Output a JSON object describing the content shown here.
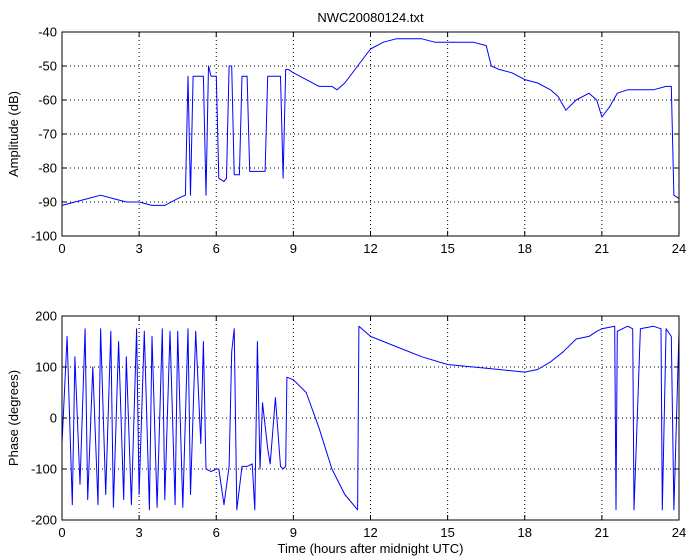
{
  "figure_title": "NWC20080124.txt",
  "shared_xlabel": "Time (hours after midnight UTC)",
  "colors": {
    "line": "#0000ff",
    "axes": "#000000",
    "grid": "#000000",
    "background": "#ffffff"
  },
  "chart_data": [
    {
      "type": "line",
      "title": "NWC20080124.txt",
      "xlabel": "",
      "ylabel": "Amplitude (dB)",
      "xlim": [
        0,
        24
      ],
      "ylim": [
        -100,
        -40
      ],
      "xticks": [
        "0",
        "3",
        "6",
        "9",
        "12",
        "15",
        "18",
        "21",
        "24"
      ],
      "yticks": [
        "-100",
        "-90",
        "-80",
        "-70",
        "-60",
        "-50",
        "-40"
      ],
      "grid": true,
      "series": [
        {
          "x": [
            0,
            0.5,
            1,
            1.5,
            2,
            2.5,
            3,
            3.5,
            4,
            4.5,
            4.8,
            4.9,
            5.0,
            5.1,
            5.3,
            5.5,
            5.6,
            5.7,
            5.8,
            6.0,
            6.1,
            6.3,
            6.4,
            6.5,
            6.6,
            6.7,
            6.9,
            7.0,
            7.2,
            7.3,
            7.6,
            7.9,
            8.0,
            8.2,
            8.3,
            8.5,
            8.6,
            8.7,
            8.8,
            9.0,
            9.5,
            10.0,
            10.5,
            10.7,
            11.0,
            11.5,
            12.0,
            12.5,
            13.0,
            13.5,
            14.0,
            14.5,
            15.0,
            15.5,
            16.0,
            16.5,
            16.7,
            17.0,
            17.5,
            18.0,
            18.5,
            19.0,
            19.3,
            19.6,
            20.0,
            20.5,
            20.8,
            21.0,
            21.3,
            21.6,
            22.0,
            22.5,
            23.0,
            23.5,
            23.7,
            23.8,
            24.0
          ],
          "values": [
            -91,
            -90,
            -89,
            -88,
            -89,
            -90,
            -90,
            -91,
            -91,
            -89,
            -88,
            -53,
            -88,
            -53,
            -53,
            -53,
            -88,
            -50,
            -53,
            -53,
            -83,
            -84,
            -83,
            -50,
            -50,
            -82,
            -82,
            -53,
            -53,
            -81,
            -81,
            -81,
            -53,
            -53,
            -53,
            -53,
            -83,
            -51,
            -51,
            -52,
            -54,
            -56,
            -56,
            -57,
            -55,
            -50,
            -45,
            -43,
            -42,
            -42,
            -42,
            -43,
            -43,
            -43,
            -43,
            -44,
            -50,
            -51,
            -52,
            -54,
            -55,
            -57,
            -59,
            -63,
            -60,
            -58,
            -60,
            -65,
            -62,
            -58,
            -57,
            -57,
            -57,
            -56,
            -56,
            -88,
            -89
          ]
        }
      ]
    },
    {
      "type": "line",
      "title": "",
      "xlabel": "Time (hours after midnight UTC)",
      "ylabel": "Phase (degrees)",
      "xlim": [
        0,
        24
      ],
      "ylim": [
        -200,
        200
      ],
      "xticks": [
        "0",
        "3",
        "6",
        "9",
        "12",
        "15",
        "18",
        "21",
        "24"
      ],
      "yticks": [
        "-200",
        "-100",
        "0",
        "100",
        "200"
      ],
      "grid": true,
      "series": [
        {
          "x": [
            0,
            0.2,
            0.4,
            0.5,
            0.7,
            0.9,
            1.0,
            1.2,
            1.4,
            1.5,
            1.7,
            1.9,
            2.0,
            2.2,
            2.4,
            2.5,
            2.7,
            2.9,
            3.0,
            3.2,
            3.4,
            3.5,
            3.7,
            3.9,
            4.0,
            4.2,
            4.4,
            4.5,
            4.7,
            4.9,
            5.0,
            5.2,
            5.4,
            5.5,
            5.6,
            5.8,
            6.0,
            6.1,
            6.3,
            6.5,
            6.6,
            6.7,
            6.8,
            7.0,
            7.2,
            7.4,
            7.5,
            7.6,
            7.7,
            7.8,
            8.0,
            8.1,
            8.3,
            8.5,
            8.6,
            8.7,
            8.75,
            9.0,
            9.5,
            10.0,
            10.5,
            11.0,
            11.5,
            11.55,
            12.0,
            13.0,
            14.0,
            15.0,
            16.0,
            17.0,
            18.0,
            18.5,
            19.0,
            19.5,
            20.0,
            20.5,
            20.8,
            21.0,
            21.5,
            21.55,
            21.6,
            22.0,
            22.2,
            22.25,
            22.5,
            23.0,
            23.3,
            23.35,
            23.5,
            23.7,
            23.8,
            24.0
          ],
          "values": [
            -50,
            160,
            -170,
            120,
            -130,
            175,
            -160,
            100,
            -170,
            175,
            -150,
            170,
            -175,
            150,
            -160,
            120,
            -170,
            175,
            -150,
            170,
            -180,
            160,
            -175,
            175,
            -160,
            170,
            -170,
            170,
            -175,
            175,
            -150,
            170,
            -50,
            150,
            -100,
            -105,
            -100,
            -100,
            -170,
            -95,
            130,
            175,
            -180,
            -95,
            -95,
            -90,
            -180,
            150,
            -100,
            30,
            -60,
            -90,
            40,
            -95,
            -100,
            -95,
            80,
            75,
            50,
            -20,
            -100,
            -150,
            -180,
            180,
            160,
            140,
            120,
            105,
            100,
            95,
            90,
            95,
            110,
            130,
            155,
            160,
            170,
            175,
            180,
            -180,
            170,
            180,
            175,
            -180,
            175,
            180,
            175,
            -180,
            175,
            160,
            -180,
            170
          ]
        }
      ]
    }
  ]
}
